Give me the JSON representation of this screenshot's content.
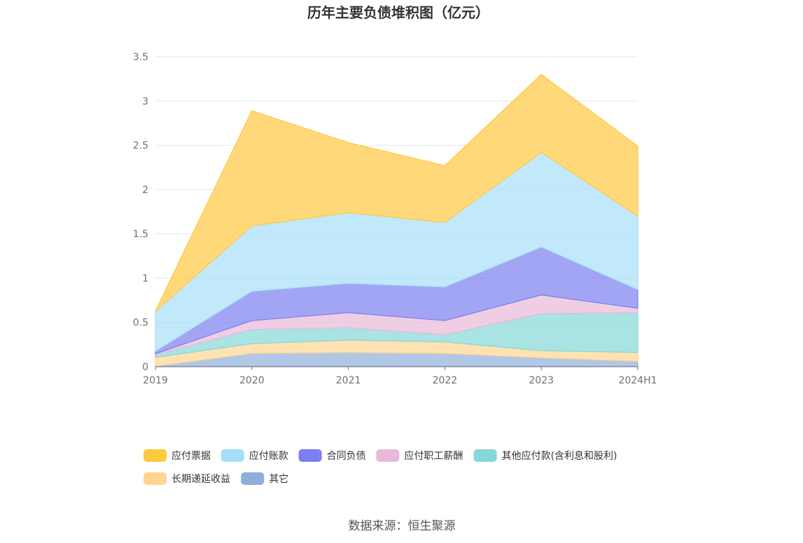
{
  "chart_data": {
    "type": "area",
    "stacked": true,
    "title": "历年主要负债堆积图（亿元）",
    "categories": [
      "2019",
      "2020",
      "2021",
      "2022",
      "2023",
      "2024H1"
    ],
    "ylim": [
      0,
      3.5
    ],
    "yticks": [
      "0",
      "0.5",
      "1",
      "1.5",
      "2",
      "2.5",
      "3",
      "3.5"
    ],
    "grid": true,
    "legend_position": "bottom",
    "series": [
      {
        "name": "其它",
        "color": "#8fafdb",
        "values": [
          0.005,
          0.15,
          0.16,
          0.15,
          0.1,
          0.06
        ]
      },
      {
        "name": "长期递延收益",
        "color": "#ffd591",
        "values": [
          0.1,
          0.11,
          0.14,
          0.13,
          0.08,
          0.1
        ]
      },
      {
        "name": "其他应付款(含利息和股利)",
        "color": "#86d7d7",
        "values": [
          0.03,
          0.16,
          0.14,
          0.08,
          0.42,
          0.45
        ]
      },
      {
        "name": "应付职工薪酬",
        "color": "#e8b9d9",
        "values": [
          0.01,
          0.1,
          0.17,
          0.16,
          0.21,
          0.05
        ]
      },
      {
        "name": "合同负债",
        "color": "#7b7ff0",
        "values": [
          0.03,
          0.33,
          0.33,
          0.38,
          0.54,
          0.21
        ]
      },
      {
        "name": "应付账款",
        "color": "#a6def9",
        "values": [
          0.45,
          0.74,
          0.8,
          0.73,
          1.07,
          0.83
        ]
      },
      {
        "name": "应付票据",
        "color": "#ffc940",
        "values": [
          0.005,
          1.3,
          0.79,
          0.64,
          0.88,
          0.79
        ]
      }
    ],
    "legend_order": [
      "应付票据",
      "应付账款",
      "合同负债",
      "应付职工薪酬",
      "其他应付款(含利息和股利)",
      "长期递延收益",
      "其它"
    ]
  },
  "footer": {
    "source": "数据来源：恒生聚源"
  }
}
